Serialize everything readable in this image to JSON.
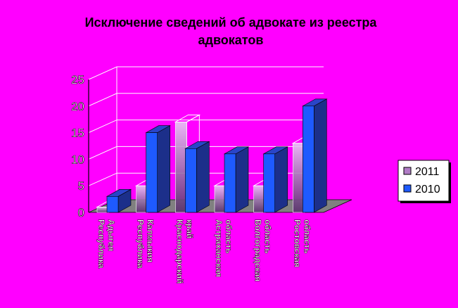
{
  "chart_data": {
    "type": "bar",
    "title": "Исключение сведений об адвокате из реестра адвокатов",
    "categories": [
      "Республика Адыгея",
      "Республика Калмыкия",
      "Краснодарский край",
      "Астраханская область",
      "Волгоградская область",
      "Ростовская область"
    ],
    "series": [
      {
        "name": "2011",
        "values": [
          1,
          5,
          17,
          5,
          5,
          13
        ]
      },
      {
        "name": "2010",
        "values": [
          3,
          15,
          12,
          11,
          11,
          20
        ]
      }
    ],
    "ylim": [
      0,
      25
    ],
    "yticks": [
      "0",
      "5",
      "10",
      "15",
      "20",
      "25"
    ],
    "grid": true,
    "legend_position": "right",
    "colors": {
      "background": "#ff00ff",
      "series_2011": "#b07cc6",
      "series_2010": "#1e5aff",
      "series_2010_dark": "#1c2f8a",
      "floor": "#808080",
      "grid": "#ffffff"
    }
  }
}
